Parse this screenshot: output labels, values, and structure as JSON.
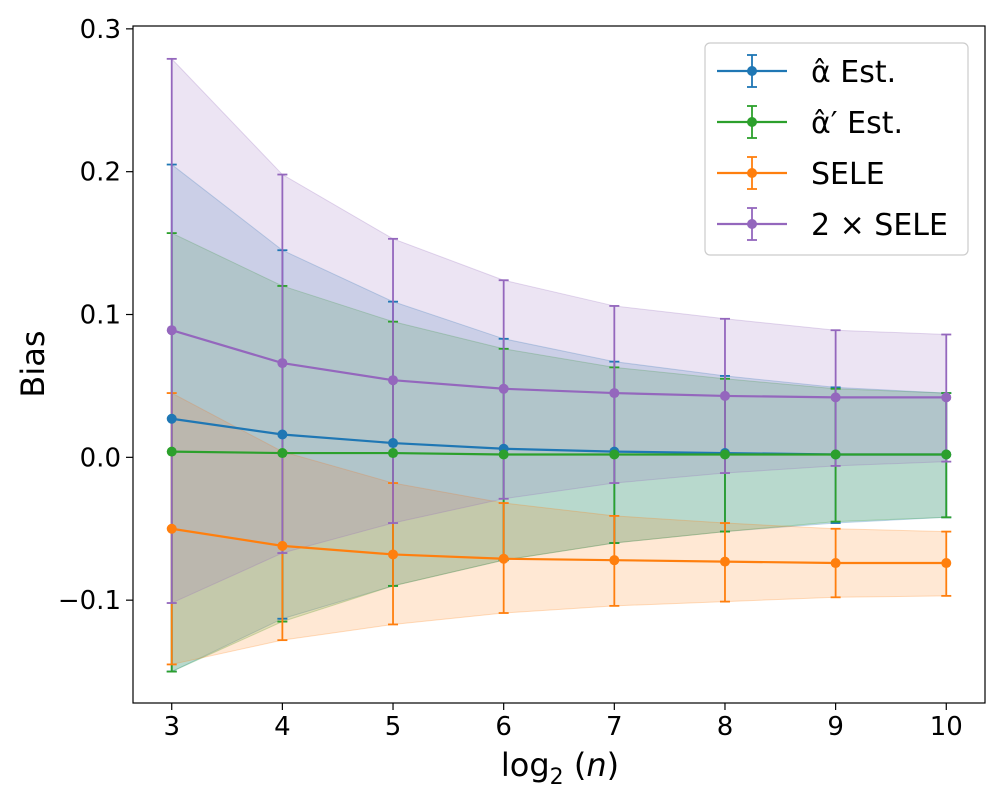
{
  "chart_data": {
    "type": "line",
    "title": "",
    "xlabel": "log₂ (n)",
    "ylabel": "Bias",
    "x": [
      3,
      4,
      5,
      6,
      7,
      8,
      9,
      10
    ],
    "xticks": [
      "3",
      "4",
      "5",
      "6",
      "7",
      "8",
      "9",
      "10"
    ],
    "yticks": [
      "−0.1",
      "0.0",
      "0.1",
      "0.2",
      "0.3"
    ],
    "ytick_values": [
      -0.1,
      0.0,
      0.1,
      0.2,
      0.3
    ],
    "xlim": [
      2.65,
      10.35
    ],
    "ylim": [
      -0.172,
      0.302
    ],
    "grid": false,
    "legend_position": "top-right",
    "series": [
      {
        "name": "α̂ Est.",
        "color": "#1f77b4",
        "values": [
          0.027,
          0.016,
          0.01,
          0.006,
          0.004,
          0.003,
          0.002,
          0.002
        ],
        "lower": [
          -0.15,
          -0.113,
          -0.09,
          -0.072,
          -0.06,
          -0.052,
          -0.046,
          -0.042
        ],
        "upper": [
          0.205,
          0.145,
          0.109,
          0.083,
          0.067,
          0.057,
          0.049,
          0.045
        ]
      },
      {
        "name": "α̂′ Est.",
        "color": "#2ca02c",
        "values": [
          0.004,
          0.003,
          0.003,
          0.002,
          0.002,
          0.002,
          0.002,
          0.002
        ],
        "lower": [
          -0.15,
          -0.115,
          -0.09,
          -0.072,
          -0.06,
          -0.052,
          -0.045,
          -0.042
        ],
        "upper": [
          0.157,
          0.12,
          0.095,
          0.076,
          0.063,
          0.055,
          0.048,
          0.045
        ]
      },
      {
        "name": "SELE",
        "color": "#ff7f0e",
        "values": [
          -0.05,
          -0.062,
          -0.068,
          -0.071,
          -0.072,
          -0.073,
          -0.074,
          -0.074
        ],
        "lower": [
          -0.145,
          -0.128,
          -0.117,
          -0.109,
          -0.104,
          -0.101,
          -0.098,
          -0.097
        ],
        "upper": [
          0.045,
          0.004,
          -0.018,
          -0.032,
          -0.041,
          -0.046,
          -0.05,
          -0.052
        ]
      },
      {
        "name": "2 × SELE",
        "color": "#9467bd",
        "values": [
          0.089,
          0.066,
          0.054,
          0.048,
          0.045,
          0.043,
          0.042,
          0.042
        ],
        "lower": [
          -0.102,
          -0.067,
          -0.046,
          -0.029,
          -0.018,
          -0.011,
          -0.006,
          -0.003
        ],
        "upper": [
          0.279,
          0.198,
          0.153,
          0.124,
          0.106,
          0.097,
          0.089,
          0.086
        ]
      }
    ]
  }
}
